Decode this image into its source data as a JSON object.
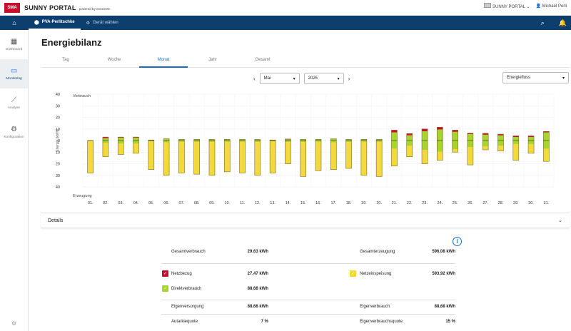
{
  "header": {
    "logo_text": "SMA",
    "title": "SUNNY PORTAL",
    "subtitle": "powered by ennexOS",
    "portal_switch": "SUNNY PORTAL",
    "user": "Michael Perli"
  },
  "nav": {
    "plant": "PVA-Perlitschke",
    "device": "Gerät wählen"
  },
  "sidebar": {
    "items": [
      {
        "label": "Dashboard",
        "icon": "dashboard-icon"
      },
      {
        "label": "Monitoring",
        "icon": "monitor-icon"
      },
      {
        "label": "Analyse",
        "icon": "analysis-icon"
      },
      {
        "label": "Konfiguration",
        "icon": "gear-icon"
      }
    ]
  },
  "page": {
    "title": "Energiebilanz",
    "tabs": [
      "Tag",
      "Woche",
      "Monat",
      "Jahr",
      "Gesamt"
    ],
    "active_tab": "Monat"
  },
  "controls": {
    "month": "Mai",
    "year": "2025",
    "view": "Energiefluss"
  },
  "chart_data": {
    "type": "bar",
    "ylabel": "Energie [kWh]",
    "top_label": "Verbrauch",
    "bottom_label": "Erzeugung",
    "ylim": [
      -40,
      40
    ],
    "yticks": [
      "40",
      "30",
      "20",
      "10",
      "0",
      "10",
      "20",
      "30",
      "40"
    ],
    "categories": [
      "01.",
      "02.",
      "03.",
      "04.",
      "05.",
      "06.",
      "07.",
      "08.",
      "09.",
      "10.",
      "11.",
      "12.",
      "13.",
      "14.",
      "15.",
      "16.",
      "17.",
      "18.",
      "19.",
      "20.",
      "21.",
      "22.",
      "23.",
      "24.",
      "25.",
      "26.",
      "27.",
      "28.",
      "29.",
      "30.",
      "31."
    ],
    "series": [
      {
        "name": "Netzbezug",
        "color": "#c8102e",
        "values": [
          0,
          1,
          0.5,
          0.5,
          0,
          0,
          0,
          0,
          0,
          0,
          0,
          0,
          0,
          0.3,
          0,
          0,
          0,
          0,
          0,
          0,
          2,
          1.5,
          2,
          2,
          1.5,
          0.8,
          1.2,
          1,
          1,
          1,
          0.8
        ]
      },
      {
        "name": "Direktverbrauch",
        "color": "#a8d52a",
        "values": [
          0,
          2,
          2.5,
          2.5,
          0.5,
          1.5,
          1,
          1,
          1,
          1,
          1,
          1,
          0.5,
          1,
          1,
          1,
          1.5,
          1,
          1,
          1,
          7,
          4.5,
          8,
          9.5,
          7.5,
          5.5,
          5,
          4.5,
          3,
          3,
          7
        ]
      },
      {
        "name": "Netzeinspeisung",
        "color": "#f3d93a",
        "values": [
          -28,
          -14,
          -12,
          -11,
          -25,
          -30,
          -28,
          -29,
          -30,
          -27,
          -28,
          -30,
          -28,
          -20,
          -31,
          -26,
          -25,
          -24,
          -30,
          -31,
          -22,
          -14,
          -20,
          -17,
          -10,
          -21,
          -8,
          -9,
          -17,
          -11,
          -18
        ]
      }
    ]
  },
  "details": {
    "label": "Details"
  },
  "summary": {
    "total_consumption_label": "Gesamtverbrauch",
    "total_consumption": "29,63 kWh",
    "total_generation_label": "Gesamterzeugung",
    "total_generation": "596,08 kWh",
    "grid_purchase_label": "Netzbezug",
    "grid_purchase": "27,47 kWh",
    "feed_in_label": "Netzeinspeisung",
    "feed_in": "593,92 kWh",
    "direct_label": "Direktverbrauch",
    "direct": "88,68 kWh",
    "self_supply_label": "Eigenversorgung",
    "self_supply": "88,68 kWh",
    "self_consumption_label": "Eigenverbrauch",
    "self_consumption": "88,68 kWh",
    "autarky_label": "Autarkiequote",
    "autarky": "7 %",
    "self_consumption_rate_label": "Eigenverbrauchsquote",
    "self_consumption_rate": "15 %"
  },
  "colors": {
    "nav": "#0d3f6e",
    "accent": "#1a6ec2",
    "grid_purchase": "#c8102e",
    "direct": "#a8d52a",
    "feed_in": "#f3d93a"
  }
}
